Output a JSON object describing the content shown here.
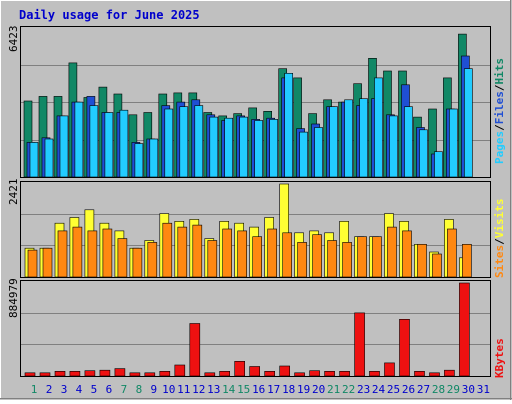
{
  "title": "Daily usage for June 2025",
  "colors": {
    "hits": "#118866",
    "files": "#1f4fd4",
    "pages": "#22ccff",
    "visits": "#ffff33",
    "sites": "#ff8811",
    "kbytes": "#ee1111",
    "title": "#0000cc",
    "weekend_day": "#118866",
    "weekday_day": "#0000cc"
  },
  "legend_top": {
    "pages": "Pages",
    "files": "Files",
    "hits": "Hits",
    "sep": "/"
  },
  "legend_mid": {
    "sites": "Sites",
    "visits": "Visits",
    "sep": "/"
  },
  "legend_bottom": {
    "kbytes": "KBytes"
  },
  "chart_data": [
    {
      "type": "bar",
      "name": "hits-files-pages",
      "ymax_label": "6423",
      "ylim": [
        0,
        6423
      ],
      "categories": [
        "1",
        "2",
        "3",
        "4",
        "5",
        "6",
        "7",
        "8",
        "9",
        "10",
        "11",
        "12",
        "13",
        "14",
        "15",
        "16",
        "17",
        "18",
        "19",
        "20",
        "21",
        "22",
        "23",
        "24",
        "25",
        "26",
        "27",
        "28",
        "29",
        "30",
        "31"
      ],
      "series": [
        {
          "name": "Hits",
          "values": [
            3300,
            3500,
            3500,
            4950,
            3450,
            3900,
            3600,
            2700,
            2800,
            3600,
            3650,
            3650,
            2800,
            2650,
            2750,
            3000,
            2850,
            4700,
            4300,
            2750,
            3350,
            3250,
            4050,
            5150,
            4600,
            4600,
            2600,
            2950,
            4300,
            6200,
            0
          ]
        },
        {
          "name": "Files",
          "values": [
            1500,
            1700,
            2650,
            3250,
            3500,
            2800,
            2800,
            1500,
            1650,
            3100,
            3250,
            3350,
            2700,
            2450,
            2650,
            2500,
            2550,
            4300,
            2100,
            2300,
            3050,
            3250,
            3100,
            3400,
            2700,
            4000,
            2150,
            1000,
            2950,
            5250,
            0
          ]
        },
        {
          "name": "Pages",
          "values": [
            1500,
            1650,
            2650,
            3250,
            3100,
            2800,
            2900,
            1450,
            1650,
            2950,
            3050,
            3100,
            2600,
            2550,
            2600,
            2450,
            2500,
            4500,
            1950,
            2150,
            3050,
            3350,
            3400,
            4300,
            2650,
            3050,
            2050,
            1100,
            2950,
            4700,
            0
          ]
        }
      ]
    },
    {
      "type": "bar",
      "name": "visits-sites",
      "ymax_label": "2421",
      "ylim": [
        0,
        2421
      ],
      "categories": [
        "1",
        "2",
        "3",
        "4",
        "5",
        "6",
        "7",
        "8",
        "9",
        "10",
        "11",
        "12",
        "13",
        "14",
        "15",
        "16",
        "17",
        "18",
        "19",
        "20",
        "21",
        "22",
        "23",
        "24",
        "25",
        "26",
        "27",
        "28",
        "29",
        "30",
        "31"
      ],
      "series": [
        {
          "name": "Visits",
          "values": [
            750,
            750,
            1400,
            1550,
            1750,
            1400,
            1200,
            750,
            950,
            1650,
            1450,
            1500,
            1000,
            1450,
            1400,
            1300,
            1550,
            2421,
            1150,
            1200,
            1150,
            1450,
            1050,
            1050,
            1650,
            1450,
            850,
            650,
            1500,
            500,
            0
          ]
        },
        {
          "name": "Sites",
          "values": [
            700,
            750,
            1200,
            1300,
            1200,
            1250,
            1000,
            750,
            900,
            1400,
            1300,
            1350,
            950,
            1250,
            1200,
            1050,
            1250,
            1150,
            900,
            1100,
            950,
            900,
            1050,
            1050,
            1300,
            1200,
            850,
            600,
            1250,
            850,
            0
          ]
        }
      ]
    },
    {
      "type": "bar",
      "name": "kbytes",
      "ymax_label": "884979",
      "ylim": [
        0,
        884979
      ],
      "categories": [
        "1",
        "2",
        "3",
        "4",
        "5",
        "6",
        "7",
        "8",
        "9",
        "10",
        "11",
        "12",
        "13",
        "14",
        "15",
        "16",
        "17",
        "18",
        "19",
        "20",
        "21",
        "22",
        "23",
        "24",
        "25",
        "26",
        "27",
        "28",
        "29",
        "30",
        "31"
      ],
      "series": [
        {
          "name": "KBytes",
          "values": [
            30000,
            30000,
            45000,
            45000,
            50000,
            55000,
            70000,
            30000,
            30000,
            45000,
            105000,
            500000,
            30000,
            45000,
            140000,
            90000,
            45000,
            95000,
            30000,
            50000,
            45000,
            45000,
            600000,
            45000,
            125000,
            540000,
            45000,
            30000,
            55000,
            884979,
            0
          ]
        }
      ]
    }
  ],
  "x_day_labels": [
    "1",
    "2",
    "3",
    "4",
    "5",
    "6",
    "7",
    "8",
    "9",
    "10",
    "11",
    "12",
    "13",
    "14",
    "15",
    "16",
    "17",
    "18",
    "19",
    "20",
    "21",
    "22",
    "23",
    "24",
    "25",
    "26",
    "27",
    "28",
    "29",
    "30",
    "31"
  ],
  "weekend_days": [
    1,
    7,
    8,
    14,
    15,
    21,
    22,
    28,
    29
  ]
}
